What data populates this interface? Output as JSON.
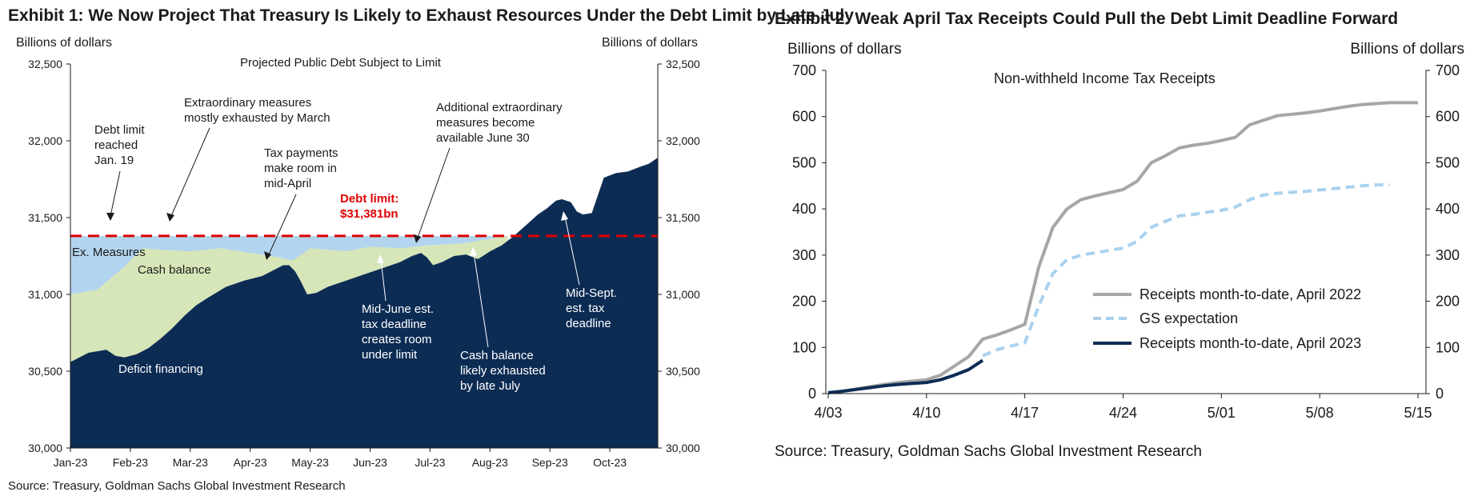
{
  "colors": {
    "navy": "#0d2c54",
    "green": "#d6e6b8",
    "lightblue": "#b3d4ee",
    "red": "#e00000",
    "gray": "#a6a6a6",
    "dash": "#a9d2ef"
  },
  "exhibit1": {
    "title": "Exhibit 1: We Now Project That Treasury Is Likely to Exhaust Resources Under the Debt Limit by Late July",
    "unit_left": "Billions of dollars",
    "unit_right": "Billions of dollars",
    "source": "Source: Treasury, Goldman Sachs Global Investment Research",
    "annotations": {
      "inner_title": "Projected Public Debt Subject to Limit",
      "debt_reached": [
        "Debt limit",
        "reached",
        "Jan. 19"
      ],
      "extraordinary": [
        "Extraordinary  measures",
        "mostly exhausted by March"
      ],
      "tax_payments": [
        "Tax payments",
        "make room in",
        "mid-April"
      ],
      "debt_limit_label": [
        "Debt limit:",
        "$31,381bn"
      ],
      "additional": [
        "Additional extraordinary",
        "measures  become",
        "available  June 30"
      ],
      "ex_measures": "Ex. Measures",
      "cash_balance": "Cash balance",
      "deficit_financing": "Deficit financing",
      "mid_june": [
        "Mid-June  est.",
        "tax deadline",
        "creates room",
        "under limit"
      ],
      "cash_exhausted": [
        "Cash balance",
        "likely exhausted",
        "by late July"
      ],
      "mid_sept": [
        "Mid-Sept.",
        "est. tax",
        "deadline"
      ]
    }
  },
  "exhibit2": {
    "title": "Exhibit 2: Weak April Tax Receipts Could Pull the Debt Limit Deadline Forward",
    "unit_left": "Billions of dollars",
    "unit_right": "Billions of dollars",
    "inner_title": "Non-withheld  Income Tax Receipts",
    "source": "Source: Treasury, Goldman Sachs Global Investment Research"
  },
  "chart_data": [
    {
      "type": "area",
      "title": "Projected Public Debt Subject to Limit",
      "ylabel": "Billions of dollars",
      "ylim": [
        30000,
        32500
      ],
      "y_ticks": [
        "30,000",
        "30,500",
        "31,000",
        "31,500",
        "32,000",
        "32,500"
      ],
      "x_ticks": [
        "Jan-23",
        "Feb-23",
        "Mar-23",
        "Apr-23",
        "May-23",
        "Jun-23",
        "Jul-23",
        "Aug-23",
        "Sep-23",
        "Oct-23"
      ],
      "debt_limit": 31381,
      "series": [
        {
          "name": "Deficit financing",
          "x": [
            0,
            0.15,
            0.3,
            0.45,
            0.6,
            0.75,
            0.9,
            1.1,
            1.3,
            1.5,
            1.7,
            1.9,
            2.1,
            2.3,
            2.6,
            2.9,
            3.2,
            3.4,
            3.55,
            3.65,
            3.75,
            3.85,
            3.95,
            4.1,
            4.3,
            4.6,
            4.9,
            5.2,
            5.5,
            5.7,
            5.85,
            5.95,
            6.05,
            6.2,
            6.4,
            6.6,
            6.8,
            7.0,
            7.2,
            7.4,
            7.6,
            7.8,
            7.95,
            8.1,
            8.2,
            8.35,
            8.45,
            8.55,
            8.7,
            8.9,
            9.1,
            9.3,
            9.5,
            9.65,
            9.8
          ],
          "values": [
            30560,
            30590,
            30620,
            30630,
            30640,
            30600,
            30590,
            30610,
            30650,
            30710,
            30780,
            30860,
            30930,
            30980,
            31050,
            31090,
            31120,
            31160,
            31190,
            31190,
            31150,
            31080,
            31000,
            31010,
            31050,
            31090,
            31130,
            31170,
            31210,
            31250,
            31270,
            31240,
            31190,
            31210,
            31250,
            31260,
            31230,
            31280,
            31320,
            31381,
            31450,
            31520,
            31560,
            31610,
            31620,
            31600,
            31540,
            31520,
            31530,
            31760,
            31790,
            31800,
            31830,
            31850,
            31890
          ]
        },
        {
          "name": "Cash balance",
          "x": [
            0,
            0.45,
            0.9,
            1.2,
            1.5,
            2.0,
            2.5,
            3.0,
            3.5,
            3.7,
            3.9,
            4.0,
            4.3,
            4.6,
            5.0,
            5.5,
            6.0,
            6.5,
            7.0,
            7.3
          ],
          "values": [
            31000,
            31030,
            31180,
            31300,
            31290,
            31280,
            31300,
            31270,
            31240,
            31220,
            31270,
            31300,
            31290,
            31280,
            31310,
            31300,
            31320,
            31330,
            31360,
            31381
          ]
        },
        {
          "name": "Ex. Measures",
          "x": [
            0,
            0.5,
            0.6,
            2.3,
            7.3
          ],
          "values": [
            31381,
            31381,
            31381,
            31381,
            31381
          ]
        }
      ]
    },
    {
      "type": "line",
      "title": "Non-withheld  Income Tax Receipts",
      "ylabel": "Billions of dollars",
      "ylim": [
        0,
        700
      ],
      "y_ticks": [
        "0",
        "100",
        "200",
        "300",
        "400",
        "500",
        "600",
        "700"
      ],
      "x_ticks": [
        "4/03",
        "4/10",
        "4/17",
        "4/24",
        "5/01",
        "5/08",
        "5/15"
      ],
      "series": [
        {
          "name": "Receipts month-to-date, April 2022",
          "x": [
            0,
            1,
            2,
            3,
            4,
            5,
            6,
            7,
            8,
            9,
            10,
            11,
            12,
            13,
            14,
            15,
            16,
            17,
            18,
            19,
            20,
            21,
            22,
            23,
            24,
            25,
            26,
            27,
            28,
            29,
            30,
            31,
            32,
            33,
            34,
            35,
            36,
            37,
            38,
            39,
            40,
            41,
            42
          ],
          "values": [
            2,
            5,
            10,
            15,
            20,
            24,
            27,
            30,
            40,
            60,
            80,
            118,
            127,
            138,
            150,
            275,
            360,
            400,
            420,
            428,
            435,
            442,
            460,
            500,
            515,
            532,
            538,
            542,
            548,
            555,
            582,
            592,
            602,
            605,
            608,
            612,
            617,
            622,
            626,
            628,
            630,
            630,
            630
          ]
        },
        {
          "name": "GS expectation",
          "x": [
            11,
            12,
            13,
            14,
            15,
            16,
            17,
            18,
            19,
            20,
            21,
            22,
            23,
            24,
            25,
            26,
            27,
            28,
            29,
            30,
            31,
            32,
            33,
            34,
            35,
            36,
            37,
            38,
            39,
            40
          ],
          "values": [
            82,
            95,
            103,
            110,
            190,
            260,
            290,
            300,
            305,
            310,
            315,
            330,
            360,
            373,
            385,
            388,
            393,
            397,
            404,
            420,
            430,
            434,
            436,
            438,
            441,
            444,
            447,
            450,
            452,
            452
          ]
        },
        {
          "name": "Receipts month-to-date, April 2023",
          "x": [
            0,
            1,
            2,
            3,
            4,
            5,
            6,
            7,
            8,
            9,
            10,
            11
          ],
          "values": [
            2,
            5,
            9,
            13,
            17,
            20,
            22,
            24,
            30,
            40,
            52,
            72
          ]
        }
      ]
    }
  ]
}
